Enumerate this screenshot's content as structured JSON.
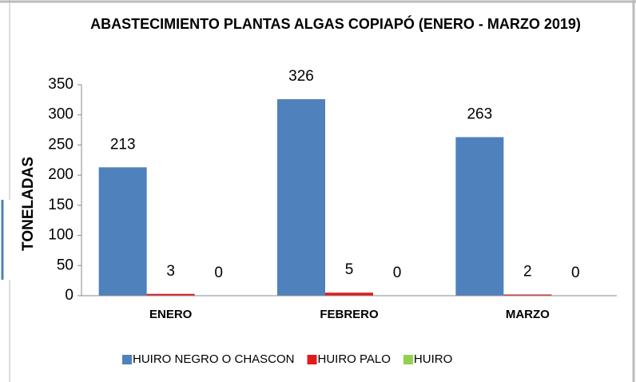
{
  "chart_data": {
    "type": "bar",
    "title": "ABASTECIMIENTO PLANTAS ALGAS COPIAPÓ  (ENERO - MARZO 2019)",
    "y_label": "TONELADAS",
    "categories": [
      "ENERO",
      "FEBRERO",
      "MARZO"
    ],
    "series": [
      {
        "name": "HUIRO NEGRO O CHASCON",
        "color": "#4f81bd",
        "values": [
          213,
          326,
          263
        ]
      },
      {
        "name": "HUIRO PALO",
        "color": "#e31a1c",
        "values": [
          3,
          5,
          2
        ]
      },
      {
        "name": "HUIRO",
        "color": "#92d050",
        "values": [
          0,
          0,
          0
        ]
      }
    ],
    "ylim": [
      0,
      350
    ],
    "yticks": [
      0,
      50,
      100,
      150,
      200,
      250,
      300,
      350
    ],
    "grid": false,
    "legend": "bottom"
  }
}
